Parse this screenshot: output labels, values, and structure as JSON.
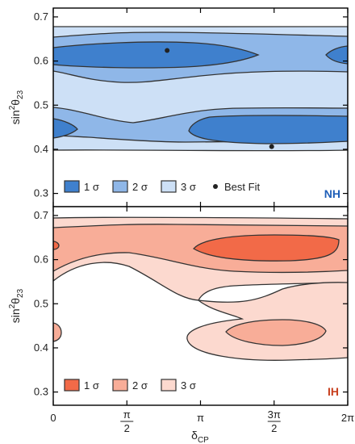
{
  "chart_data": [
    {
      "type": "contour",
      "panel": "top",
      "hierarchy_label": "NH",
      "xlabel": "",
      "ylabel_base": "sin",
      "ylabel_sup": "2",
      "ylabel_theta": "θ",
      "ylabel_sub": "23",
      "xlim": [
        0,
        6.2832
      ],
      "ylim": [
        0.27,
        0.72
      ],
      "yticks": [
        0.3,
        0.4,
        0.5,
        0.6,
        0.7
      ],
      "ytick_labels": [
        "0.3",
        "0.4",
        "0.5",
        "0.6",
        "0.7"
      ],
      "colors": {
        "sigma1": "#3f80cd",
        "sigma2": "#8fb7e8",
        "sigma3": "#cde0f6",
        "accent": "#1f5fb8"
      },
      "legend": [
        {
          "key": "1sigma",
          "label": "1 σ"
        },
        {
          "key": "2sigma",
          "label": "2 σ"
        },
        {
          "key": "3sigma",
          "label": "3 σ"
        },
        {
          "key": "bestfit",
          "label": "Best Fit"
        }
      ],
      "best_fit_points": [
        {
          "x": 2.43,
          "y": 0.624
        },
        {
          "x": 4.66,
          "y": 0.406
        }
      ],
      "regions": {
        "sigma3_band": {
          "y_low": 0.355,
          "y_high": 0.685
        },
        "sigma2_upper": [
          [
            0,
            0.595,
            0.672
          ],
          [
            1.57,
            0.575,
            0.665
          ],
          [
            3.14,
            0.575,
            0.67
          ],
          [
            4.71,
            0.585,
            0.668
          ],
          [
            6.28,
            0.595,
            0.672
          ]
        ],
        "sigma2_lower": [
          [
            0,
            0.378,
            0.46
          ],
          [
            1.57,
            0.37,
            0.44
          ],
          [
            3.14,
            0.37,
            0.46
          ],
          [
            4.71,
            0.37,
            0.46
          ],
          [
            6.28,
            0.378,
            0.46
          ]
        ],
        "sigma1_upper": [
          {
            "x_start": 0,
            "x_end": 3.5,
            "y_center": 0.624
          },
          {
            "x_start": 5.9,
            "x_end": 6.28,
            "y_center": 0.624
          }
        ],
        "sigma1_lower": [
          {
            "x_start": 0,
            "x_end": 0.7,
            "y_center": 0.41
          },
          {
            "x_start": 2.65,
            "x_end": 6.28,
            "y_center": 0.406
          }
        ]
      }
    },
    {
      "type": "contour",
      "panel": "bottom",
      "hierarchy_label": "IH",
      "xlabel_base": "δ",
      "xlabel_sub": "CP",
      "ylabel_base": "sin",
      "ylabel_sup": "2",
      "ylabel_theta": "θ",
      "ylabel_sub": "23",
      "xlim": [
        0,
        6.2832
      ],
      "ylim": [
        0.27,
        0.72
      ],
      "yticks": [
        0.3,
        0.4,
        0.5,
        0.6,
        0.7
      ],
      "ytick_labels": [
        "0.3",
        "0.4",
        "0.5",
        "0.6",
        "0.7"
      ],
      "xticks": [
        0,
        1.5708,
        3.1416,
        4.7124,
        6.2832
      ],
      "xtick_labels": [
        {
          "plain": "0"
        },
        {
          "num": "π",
          "den": "2"
        },
        {
          "plain": "π"
        },
        {
          "num": "3π",
          "den": "2"
        },
        {
          "plain": "2π"
        }
      ],
      "colors": {
        "sigma1": "#f26a48",
        "sigma2": "#f8ad98",
        "sigma3": "#fcd9cf",
        "accent": "#c8401f"
      },
      "legend": [
        {
          "key": "1sigma",
          "label": "1 σ"
        },
        {
          "key": "2sigma",
          "label": "2 σ"
        },
        {
          "key": "3sigma",
          "label": "3 σ"
        }
      ],
      "regions": {
        "sigma3_upper": {
          "y_low": 0.555,
          "y_high": 0.705
        },
        "sigma3_lower": {
          "x_start": 2.7,
          "x_end": 6.28,
          "y_low": 0.355,
          "y_high": 0.51
        },
        "sigma2_upper": {
          "y_low": 0.58,
          "y_high": 0.685
        },
        "sigma2_lower": {
          "x_start": 3.5,
          "x_end": 5.6,
          "y_low": 0.37,
          "y_high": 0.43
        },
        "sigma1_upper": {
          "x_start": 3.2,
          "x_end": 6.1,
          "y_low": 0.6,
          "y_high": 0.65
        },
        "sigma1_left_edge": [
          {
            "y_center": 0.63
          },
          {
            "y_center": 0.41
          }
        ]
      }
    }
  ]
}
